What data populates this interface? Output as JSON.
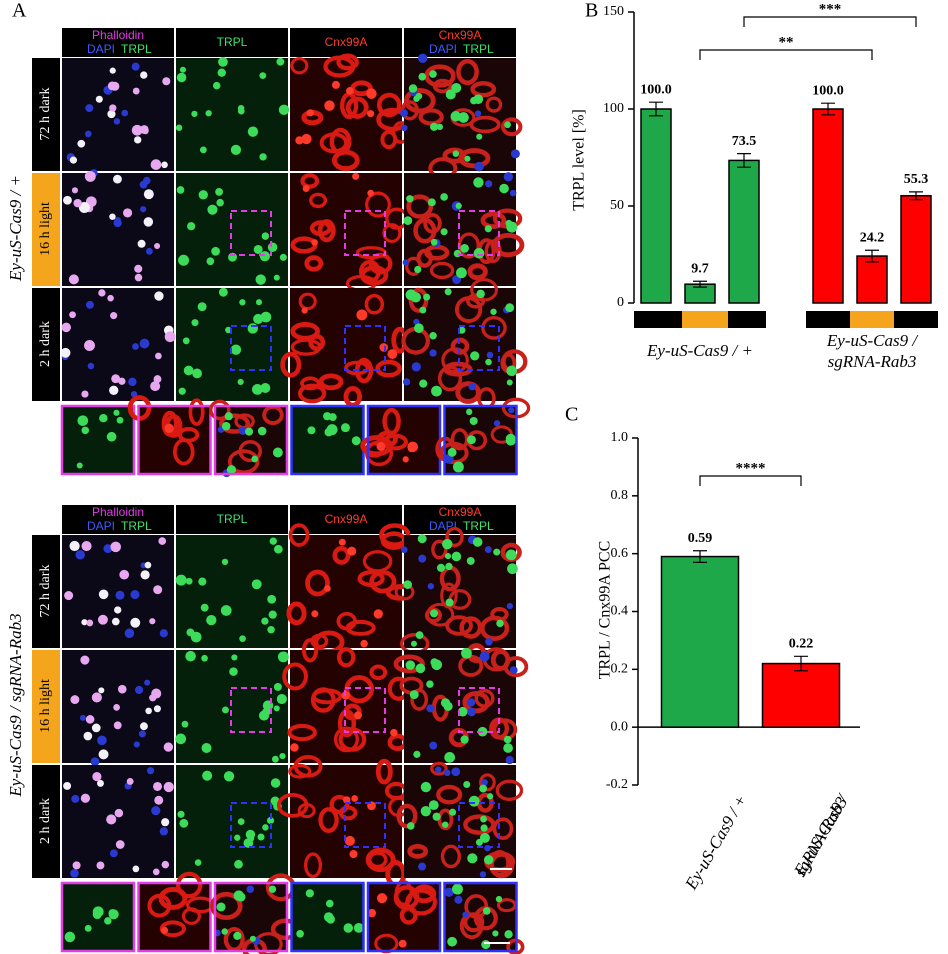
{
  "panel_a": {
    "label": "A",
    "blocks": [
      {
        "genotype": "Ey-uS-Cas9 / +",
        "columns": [
          [
            [
              "Phalloidin"
            ],
            [
              "DAPI",
              "TRPL"
            ]
          ],
          [
            [
              "TRPL"
            ]
          ],
          [
            [
              "Cnx99A"
            ]
          ],
          [
            [
              "Cnx99A"
            ],
            [
              "DAPI",
              "TRPL"
            ]
          ]
        ],
        "rows": [
          "72 h dark",
          "16 h light",
          "2 h dark"
        ]
      },
      {
        "genotype": "Ey-uS-Cas9 / sgRNA-Rab3",
        "columns": [
          [
            [
              "Phalloidin"
            ],
            [
              "DAPI",
              "TRPL"
            ]
          ],
          [
            [
              "TRPL"
            ]
          ],
          [
            [
              "Cnx99A"
            ]
          ],
          [
            [
              "Cnx99A"
            ],
            [
              "DAPI",
              "TRPL"
            ]
          ]
        ],
        "rows": [
          "72 h dark",
          "16 h light",
          "2 h dark"
        ]
      }
    ]
  },
  "chart_data": [
    {
      "type": "bar",
      "label": "B",
      "y_label": "TRPL level [%]",
      "categories": [
        null,
        null,
        null,
        null,
        null,
        null
      ],
      "groups": [
        [
          "Ey-uS-Cas9 / +"
        ],
        [
          "Ey-uS-Cas9 /",
          "sgRNA-Rab3"
        ]
      ],
      "values": [
        100,
        9.7,
        73.5,
        100,
        24.2,
        55.3
      ],
      "value_labels": [
        "100.0",
        "9.7",
        "73.5",
        "100.0",
        "24.2",
        "55.3"
      ],
      "errors": [
        3.5,
        1.5,
        3.5,
        3,
        3,
        2
      ],
      "colors": [
        "#1fa84a",
        "#1fa84a",
        "#1fa84a",
        "#ff0000",
        "#ff0000",
        "#ff0000"
      ],
      "ylim": [
        0,
        150
      ],
      "yticks": [
        0,
        50,
        100,
        150
      ],
      "annotations": [
        {
          "text": "***",
          "bars": [
            2,
            5
          ]
        },
        {
          "text": "**",
          "bars": [
            1,
            4
          ]
        }
      ]
    },
    {
      "type": "bar",
      "label": "C",
      "y_label": "TRPL / Cnx99A PCC",
      "categories": [
        [
          "Ey-uS-Cas9 / +"
        ],
        [
          "Ey-uS-Cas9 /",
          "sgRNA-Rab3"
        ]
      ],
      "values": [
        0.59,
        0.22
      ],
      "errors": [
        0.02,
        0.025
      ],
      "colors": [
        "#1fa84a",
        "#ff0000"
      ],
      "ylim": [
        -0.2,
        1.0
      ],
      "yticks": [
        -0.2,
        {
          "value": 0,
          "label": "0.0"
        },
        0.2,
        0.4,
        0.6,
        0.8,
        {
          "value": 1,
          "label": "1.0"
        }
      ],
      "annotations": [
        {
          "text": "****",
          "bars": [
            0,
            1
          ]
        }
      ]
    }
  ]
}
